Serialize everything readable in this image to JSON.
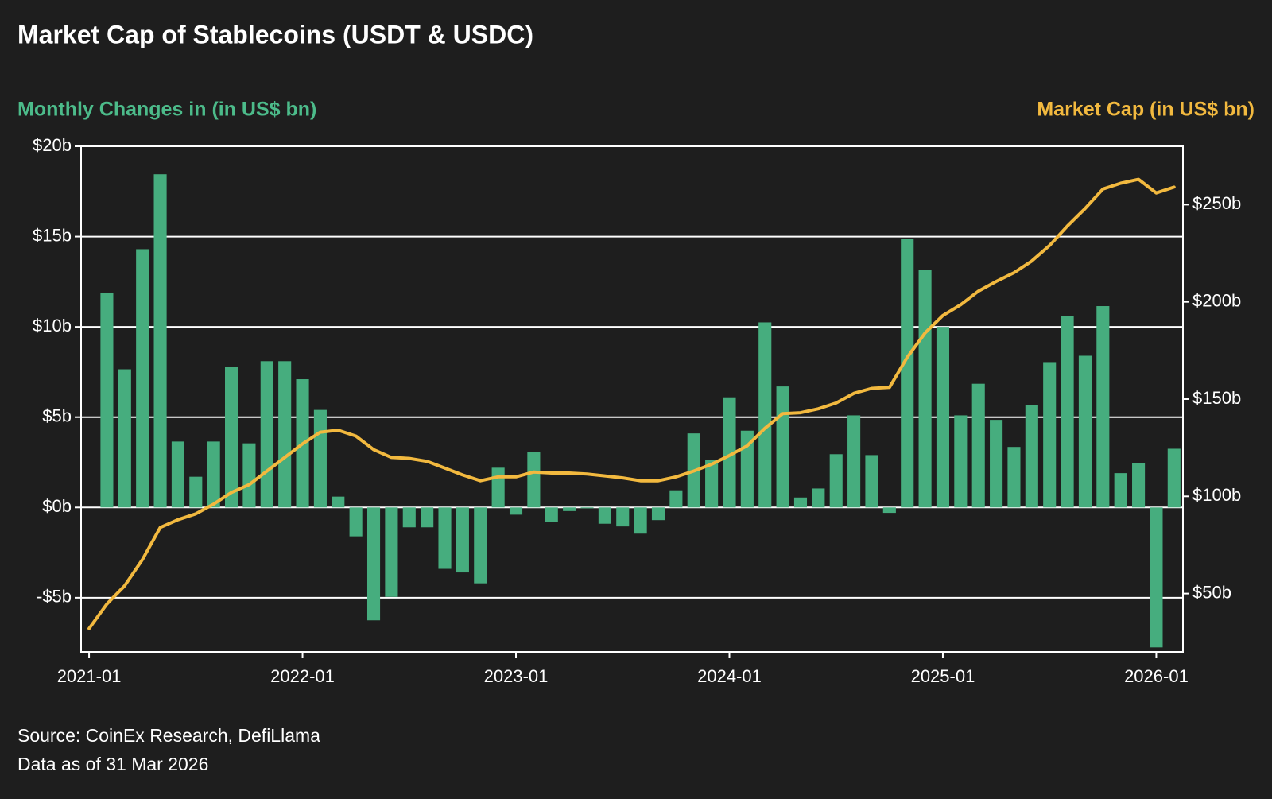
{
  "chart_data": {
    "type": "bar-line",
    "title": "Market Cap of Stablecoins (USDT & USDC)",
    "ylabel": "Monthly Changes in (in US$ bn)",
    "y2label": "Market Cap (in US$ bn)",
    "source": "Source: CoinEx Research, DefiLlama",
    "note": "Data as of 31 Mar 2026",
    "x": [
      "2021-01",
      "2021-02",
      "2021-03",
      "2021-04",
      "2021-05",
      "2021-06",
      "2021-07",
      "2021-08",
      "2021-09",
      "2021-10",
      "2021-11",
      "2021-12",
      "2022-01",
      "2022-02",
      "2022-03",
      "2022-04",
      "2022-05",
      "2022-06",
      "2022-07",
      "2022-08",
      "2022-09",
      "2022-10",
      "2022-11",
      "2022-12",
      "2023-01",
      "2023-02",
      "2023-03",
      "2023-04",
      "2023-05",
      "2023-06",
      "2023-07",
      "2023-08",
      "2023-09",
      "2023-10",
      "2023-11",
      "2023-12",
      "2024-01",
      "2024-02",
      "2024-03",
      "2024-04",
      "2024-05",
      "2024-06",
      "2024-07",
      "2024-08",
      "2024-09",
      "2024-10",
      "2024-11",
      "2024-12",
      "2025-01",
      "2025-02",
      "2025-03",
      "2025-04",
      "2025-05",
      "2025-06",
      "2025-07",
      "2025-08",
      "2025-09",
      "2025-10",
      "2025-11",
      "2025-12",
      "2026-01",
      "2026-02"
    ],
    "xticks": [
      "2021-01",
      "2022-01",
      "2023-01",
      "2024-01",
      "2025-01",
      "2026-01"
    ],
    "series": [
      {
        "type": "bar",
        "color": "#46ad7e",
        "values": [
          null,
          11.9,
          7.65,
          14.3,
          18.45,
          3.65,
          1.7,
          3.65,
          7.8,
          3.55,
          8.1,
          8.1,
          7.1,
          5.4,
          0.6,
          -1.6,
          -6.25,
          -4.95,
          -1.1,
          -1.1,
          -3.4,
          -3.6,
          -4.2,
          2.2,
          -0.4,
          3.05,
          -0.8,
          -0.2,
          -0.05,
          -0.9,
          -1.05,
          -1.45,
          -0.7,
          0.95,
          4.1,
          2.65,
          6.1,
          4.25,
          10.25,
          6.7,
          0.55,
          1.05,
          2.95,
          5.1,
          2.9,
          -0.3,
          14.85,
          13.15,
          10.0,
          5.1,
          6.85,
          4.85,
          3.35,
          5.65,
          8.05,
          10.6,
          8.4,
          11.15,
          1.9,
          2.45,
          -7.75,
          3.25
        ]
      },
      {
        "type": "line",
        "axis": "y2",
        "color": "#f2b93f",
        "values": [
          32,
          44.6,
          54,
          67.5,
          84,
          88,
          91,
          96,
          102,
          106,
          113,
          120,
          127,
          133,
          134,
          131,
          124,
          120,
          119.5,
          118,
          114.5,
          111,
          108,
          110,
          110,
          112.5,
          112,
          112,
          111.5,
          110.5,
          109.5,
          108,
          108,
          110,
          113,
          116.5,
          121,
          126,
          135,
          142.5,
          143,
          145,
          148,
          153,
          155.5,
          156,
          171.5,
          184,
          193,
          198.5,
          205.5,
          210.5,
          215,
          221,
          229,
          239,
          248,
          258,
          261,
          263,
          256,
          259
        ]
      }
    ],
    "ylim": [
      -8,
      20
    ],
    "yticks": [
      {
        "value": -5,
        "label": "-$5b"
      },
      {
        "value": 0,
        "label": "$0b"
      },
      {
        "value": 5,
        "label": "$5b"
      },
      {
        "value": 10,
        "label": "$10b"
      },
      {
        "value": 15,
        "label": "$15b"
      },
      {
        "value": 20,
        "label": "$20b"
      }
    ],
    "y2lim": [
      20,
      280
    ],
    "y2ticks": [
      {
        "value": 50,
        "label": "$50b"
      },
      {
        "value": 100,
        "label": "$100b"
      },
      {
        "value": 150,
        "label": "$150b"
      },
      {
        "value": 200,
        "label": "$200b"
      },
      {
        "value": 250,
        "label": "$250b"
      }
    ],
    "grid": true
  }
}
